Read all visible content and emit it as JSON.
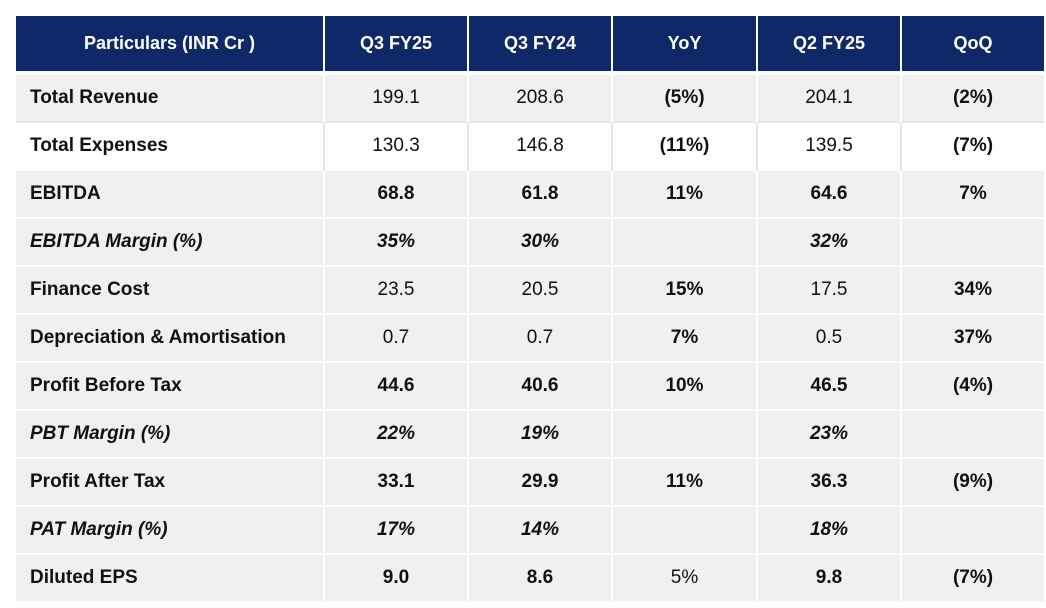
{
  "table": {
    "headers": [
      "Particulars (INR Cr )",
      "Q3 FY25",
      "Q3 FY24",
      "YoY",
      "Q2 FY25",
      "QoQ"
    ],
    "rows": [
      {
        "label": "Total Revenue",
        "values": [
          "199.1",
          "208.6",
          "(5%)",
          "204.1",
          "(2%)"
        ]
      },
      {
        "label": "Total Expenses",
        "values": [
          "130.3",
          "146.8",
          "(11%)",
          "139.5",
          "(7%)"
        ]
      },
      {
        "label": "EBITDA",
        "values": [
          "68.8",
          "61.8",
          "11%",
          "64.6",
          "7%"
        ]
      },
      {
        "label": "EBITDA Margin (%)",
        "values": [
          "35%",
          "30%",
          "",
          "32%",
          ""
        ]
      },
      {
        "label": "Finance Cost",
        "values": [
          "23.5",
          "20.5",
          "15%",
          "17.5",
          "34%"
        ]
      },
      {
        "label": "Depreciation & Amortisation",
        "values": [
          "0.7",
          "0.7",
          "7%",
          "0.5",
          "37%"
        ]
      },
      {
        "label": "Profit Before Tax",
        "values": [
          "44.6",
          "40.6",
          "10%",
          "46.5",
          "(4%)"
        ]
      },
      {
        "label": "PBT Margin (%)",
        "values": [
          "22%",
          "19%",
          "",
          "23%",
          ""
        ]
      },
      {
        "label": "Profit After Tax",
        "values": [
          "33.1",
          "29.9",
          "11%",
          "36.3",
          "(9%)"
        ]
      },
      {
        "label": "PAT Margin (%)",
        "values": [
          "17%",
          "14%",
          "",
          "18%",
          ""
        ]
      },
      {
        "label": "Diluted EPS",
        "values": [
          "9.0",
          "8.6",
          "5%",
          "9.8",
          "(7%)"
        ]
      }
    ]
  },
  "colors": {
    "header_bg": "#0f2867",
    "header_text": "#ffffff",
    "row_shade": "#f0f0f0"
  }
}
